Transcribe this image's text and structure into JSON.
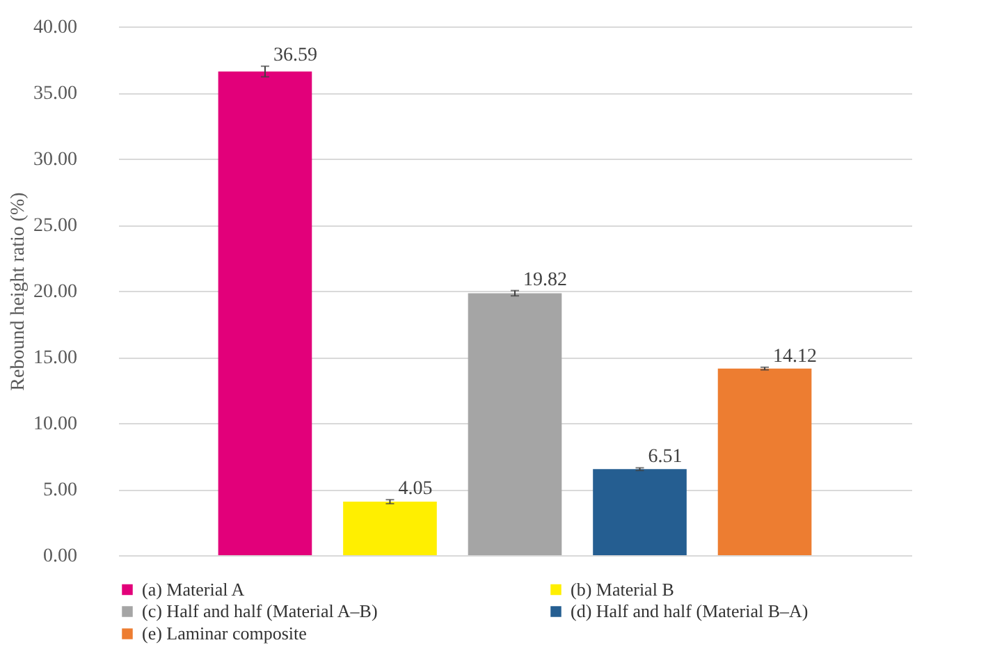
{
  "chart_data": {
    "type": "bar",
    "ylabel": "Rebound height ratio (%)",
    "categories": [
      null
    ],
    "series": [
      {
        "name": "(a) Material A",
        "color": "#e2007a",
        "values": [
          36.59
        ],
        "errors": [
          0.4
        ]
      },
      {
        "name": "(b) Material B",
        "color": "#ffef00",
        "values": [
          4.05
        ],
        "errors": [
          0.15
        ]
      },
      {
        "name": "(c) Half and half (Material A–B)",
        "color": "#a5a5a5",
        "values": [
          19.82
        ],
        "errors": [
          0.2
        ]
      },
      {
        "name": "(d) Half and half (Material B–A)",
        "color": "#255e91",
        "values": [
          6.51
        ],
        "errors": [
          0.1
        ]
      },
      {
        "name": "(e) Laminar composite",
        "color": "#ed7d31",
        "values": [
          14.12
        ],
        "errors": [
          0.1
        ]
      }
    ],
    "ylim": [
      0,
      40
    ],
    "yticks": [
      {
        "value": 0,
        "label": "0.00"
      },
      {
        "value": 5,
        "label": "5.00"
      },
      {
        "value": 10,
        "label": "10.00"
      },
      {
        "value": 15,
        "label": "15.00"
      },
      {
        "value": 20,
        "label": "20.00"
      },
      {
        "value": 25,
        "label": "25.00"
      },
      {
        "value": 30,
        "label": "30.00"
      },
      {
        "value": 35,
        "label": "35.00"
      },
      {
        "value": 40,
        "label": "40.00"
      }
    ],
    "grid": "y",
    "legend": "bottom",
    "data_labels": true,
    "tick_labels": "y"
  }
}
